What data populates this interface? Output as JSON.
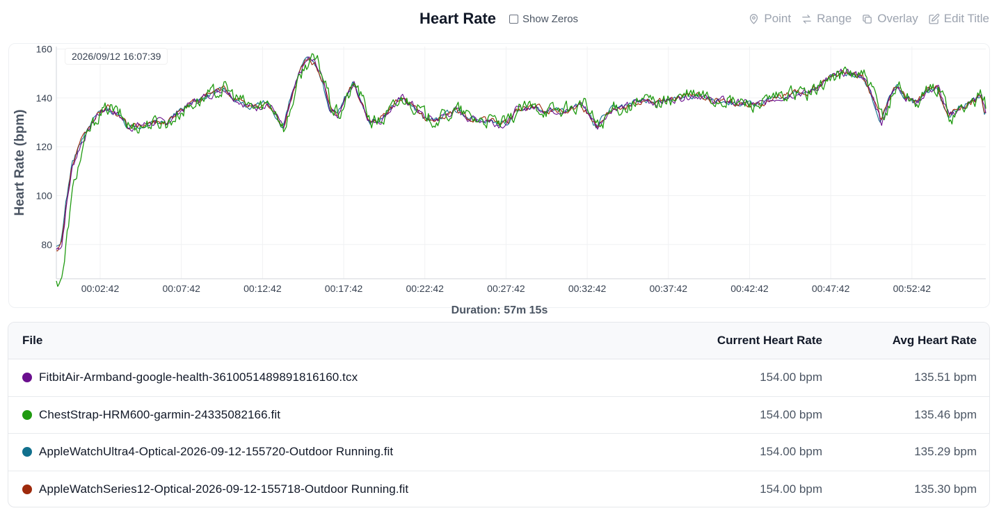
{
  "header": {
    "title": "Heart Rate",
    "show_zeros_label": "Show Zeros",
    "tools": [
      {
        "label": "Point",
        "icon": "map-pin-icon"
      },
      {
        "label": "Range",
        "icon": "arrows-exchange-icon"
      },
      {
        "label": "Overlay",
        "icon": "copy-icon"
      },
      {
        "label": "Edit Title",
        "icon": "edit-icon"
      }
    ]
  },
  "tooltip": "2026/09/12 16:07:39",
  "duration": "Duration: 57m 15s",
  "chart_data": {
    "type": "line",
    "ylabel": "Heart Rate (bpm)",
    "xlabel": "",
    "ylim": [
      66,
      161
    ],
    "yticks": [
      80,
      100,
      120,
      140,
      160
    ],
    "xticks": [
      "00:02:42",
      "00:07:42",
      "00:12:42",
      "00:17:42",
      "00:22:42",
      "00:27:42",
      "00:32:42",
      "00:37:42",
      "00:42:42",
      "00:47:42",
      "00:52:42"
    ],
    "grid": true,
    "x_unit": "elapsed seconds",
    "x_range": [
      0,
      3435
    ],
    "points": [
      [
        0,
        78
      ],
      [
        20,
        80
      ],
      [
        40,
        98
      ],
      [
        60,
        112
      ],
      [
        90,
        121
      ],
      [
        120,
        127
      ],
      [
        150,
        133
      ],
      [
        190,
        136
      ],
      [
        230,
        133
      ],
      [
        270,
        128
      ],
      [
        320,
        129
      ],
      [
        370,
        130
      ],
      [
        410,
        130
      ],
      [
        450,
        134
      ],
      [
        500,
        138
      ],
      [
        540,
        140
      ],
      [
        580,
        142
      ],
      [
        620,
        144
      ],
      [
        660,
        140
      ],
      [
        700,
        137
      ],
      [
        740,
        136
      ],
      [
        780,
        138
      ],
      [
        810,
        134
      ],
      [
        840,
        127
      ],
      [
        870,
        140
      ],
      [
        900,
        150
      ],
      [
        930,
        156
      ],
      [
        960,
        154
      ],
      [
        990,
        146
      ],
      [
        1010,
        136
      ],
      [
        1040,
        133
      ],
      [
        1070,
        140
      ],
      [
        1100,
        146
      ],
      [
        1130,
        138
      ],
      [
        1160,
        130
      ],
      [
        1200,
        131
      ],
      [
        1240,
        136
      ],
      [
        1280,
        140
      ],
      [
        1320,
        137
      ],
      [
        1360,
        132
      ],
      [
        1400,
        131
      ],
      [
        1440,
        133
      ],
      [
        1480,
        135
      ],
      [
        1520,
        132
      ],
      [
        1560,
        131
      ],
      [
        1600,
        131
      ],
      [
        1640,
        129
      ],
      [
        1670,
        130
      ],
      [
        1700,
        135
      ],
      [
        1740,
        136
      ],
      [
        1780,
        136
      ],
      [
        1820,
        135
      ],
      [
        1860,
        135
      ],
      [
        1900,
        135
      ],
      [
        1940,
        138
      ],
      [
        1970,
        133
      ],
      [
        2000,
        128
      ],
      [
        2030,
        133
      ],
      [
        2060,
        136
      ],
      [
        2100,
        136
      ],
      [
        2140,
        138
      ],
      [
        2180,
        139
      ],
      [
        2220,
        138
      ],
      [
        2260,
        139
      ],
      [
        2300,
        140
      ],
      [
        2340,
        141
      ],
      [
        2380,
        141
      ],
      [
        2420,
        139
      ],
      [
        2460,
        139
      ],
      [
        2500,
        138
      ],
      [
        2540,
        138
      ],
      [
        2580,
        137
      ],
      [
        2620,
        138
      ],
      [
        2660,
        140
      ],
      [
        2700,
        141
      ],
      [
        2740,
        142
      ],
      [
        2780,
        142
      ],
      [
        2820,
        145
      ],
      [
        2860,
        148
      ],
      [
        2900,
        150
      ],
      [
        2940,
        150
      ],
      [
        2980,
        149
      ],
      [
        3020,
        140
      ],
      [
        3050,
        130
      ],
      [
        3080,
        140
      ],
      [
        3110,
        146
      ],
      [
        3140,
        140
      ],
      [
        3180,
        138
      ],
      [
        3220,
        143
      ],
      [
        3260,
        144
      ],
      [
        3300,
        132
      ],
      [
        3340,
        136
      ],
      [
        3380,
        138
      ],
      [
        3420,
        141
      ],
      [
        3435,
        134
      ]
    ],
    "series": [
      {
        "name": "FitbitAir-Armband-google-health-3610051489891816160.tcx",
        "color": "#6a0f8e"
      },
      {
        "name": "ChestStrap-HRM600-garmin-24335082166.fit",
        "color": "#1f9a10"
      },
      {
        "name": "AppleWatchUltra4-Optical-2026-09-12-155720-Outdoor Running.fit",
        "color": "#11708d"
      },
      {
        "name": "AppleWatchSeries12-Optical-2026-09-12-155718-Outdoor Running.fit",
        "color": "#9e2a0c"
      }
    ]
  },
  "table": {
    "headers": {
      "file": "File",
      "current": "Current Heart Rate",
      "avg": "Avg Heart Rate"
    },
    "rows": [
      {
        "color": "#6a0f8e",
        "file": "FitbitAir-Armband-google-health-3610051489891816160.tcx",
        "current": "154.00 bpm",
        "avg": "135.51 bpm"
      },
      {
        "color": "#1f9a10",
        "file": "ChestStrap-HRM600-garmin-24335082166.fit",
        "current": "154.00 bpm",
        "avg": "135.46 bpm"
      },
      {
        "color": "#11708d",
        "file": "AppleWatchUltra4-Optical-2026-09-12-155720-Outdoor Running.fit",
        "current": "154.00 bpm",
        "avg": "135.29 bpm"
      },
      {
        "color": "#9e2a0c",
        "file": "AppleWatchSeries12-Optical-2026-09-12-155718-Outdoor Running.fit",
        "current": "154.00 bpm",
        "avg": "135.30 bpm"
      }
    ]
  }
}
